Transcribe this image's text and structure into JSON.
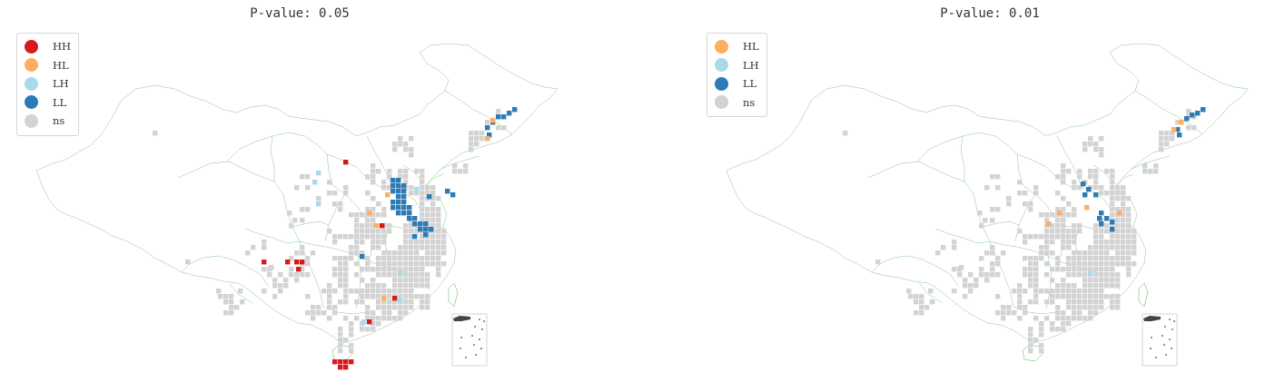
{
  "colors": {
    "HH": "#d7191c",
    "HL": "#fdae61",
    "LH": "#abd9e9",
    "LL": "#2c7bb6",
    "ns": "#d3d3d3",
    "border": "#52b152",
    "inset_islands": "#444444"
  },
  "panels": [
    {
      "title": "P-value: 0.05",
      "legend": [
        {
          "key": "HH",
          "label": "HH"
        },
        {
          "key": "HL",
          "label": "HL"
        },
        {
          "key": "LH",
          "label": "LH"
        },
        {
          "key": "LL",
          "label": "LL"
        },
        {
          "key": "ns",
          "label": "ns"
        }
      ]
    },
    {
      "title": "P-value: 0.01",
      "legend": [
        {
          "key": "HL",
          "label": "HL"
        },
        {
          "key": "LH",
          "label": "LH"
        },
        {
          "key": "LL",
          "label": "LL"
        },
        {
          "key": "ns",
          "label": "ns"
        }
      ]
    }
  ]
}
